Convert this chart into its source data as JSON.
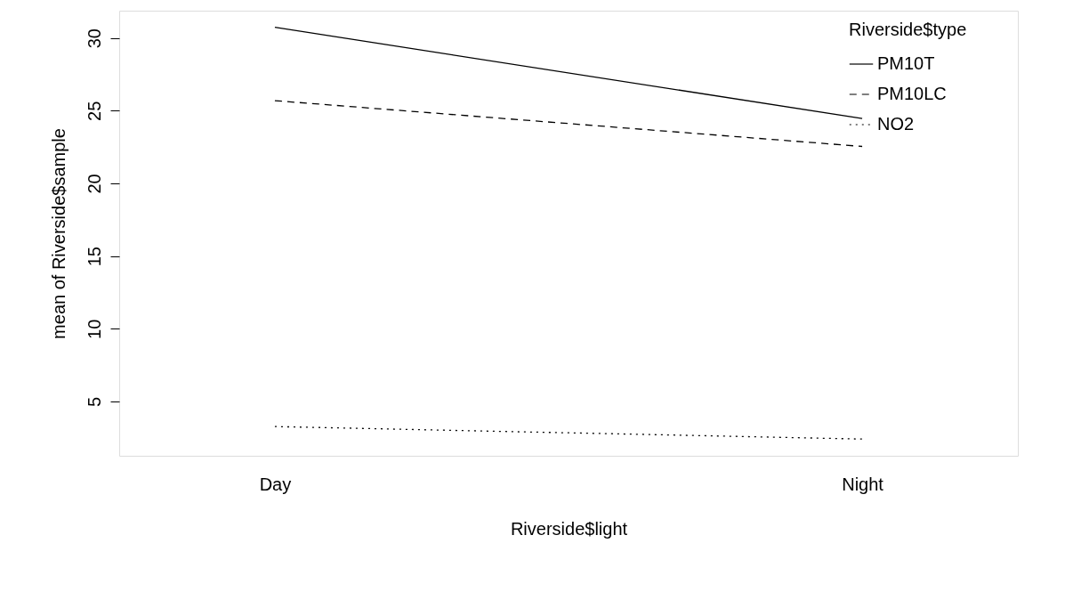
{
  "chart_data": {
    "type": "line",
    "xlabel": "Riverside$light",
    "ylabel": "mean of  Riverside$sample",
    "legend_title": "Riverside$type",
    "categories": [
      "Day",
      "Night"
    ],
    "series": [
      {
        "name": "PM10T",
        "color": "#000000",
        "line_style": "solid",
        "values": [
          30.74,
          24.46
        ]
      },
      {
        "name": "PM10LC",
        "color": "#000000",
        "line_style": "dashed",
        "values": [
          25.69,
          22.54
        ]
      },
      {
        "name": "NO2",
        "color": "#000000",
        "line_style": "dotted",
        "values": [
          3.27,
          2.41
        ]
      }
    ],
    "ylim": [
      1.26,
      31.88
    ],
    "yticks": [
      5,
      10,
      15,
      20,
      25,
      30
    ],
    "grid": false,
    "legend": "top right",
    "marker": "none"
  }
}
